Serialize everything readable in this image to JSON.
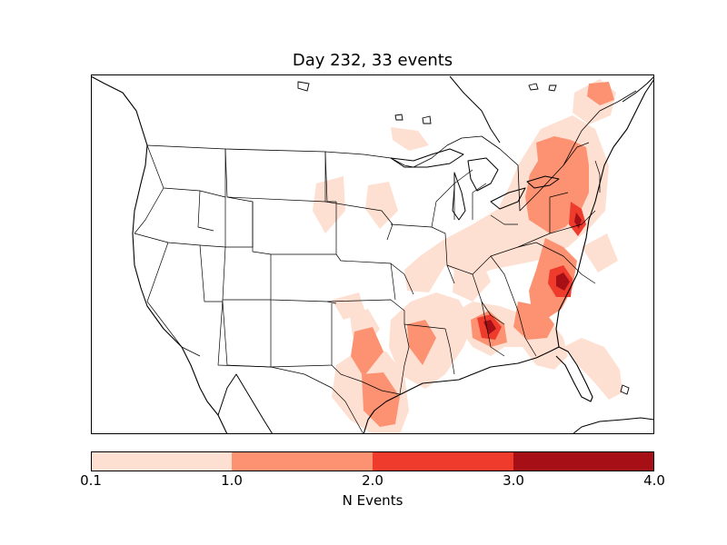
{
  "title": "Day 232, 33 events",
  "colorbar": {
    "label": "N Events",
    "ticks": [
      "0.1",
      "1.0",
      "2.0",
      "3.0",
      "4.0"
    ],
    "levels": [
      0.1,
      1.0,
      2.0,
      3.0,
      4.0
    ],
    "colors": [
      "#fee0d2",
      "#fc9272",
      "#ef3b2c",
      "#a50f15"
    ]
  },
  "map": {
    "projection": "lambert-conformal",
    "region": "North America (contiguous United States)",
    "features": [
      "coastlines",
      "country-borders",
      "state-borders",
      "great-lakes"
    ],
    "contour_fill_colors": {
      "level_1": "#fee0d2",
      "level_2": "#fc9272",
      "level_3": "#ef3b2c",
      "level_4": "#a50f15"
    }
  }
}
